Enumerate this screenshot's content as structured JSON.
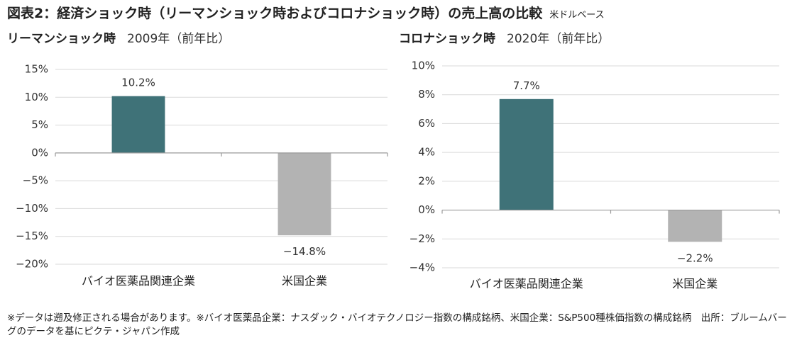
{
  "title": "図表2：経済ショック時（リーマンショック時およびコロナショック時）の売上高の比較",
  "unit": "米ドルベース",
  "note": "※データは遡及修正される場合があります。※バイオ医薬品企業：ナスダック・バイオテクノロジー指数の構成銘柄、米国企業：S&P500種株価指数の構成銘柄　出所：ブルームバーグのデータを基にピクテ・ジャパン作成",
  "colors": {
    "bio": "#3f7278",
    "us": "#b3b3b3"
  },
  "chart_data": [
    {
      "type": "bar",
      "title": "リーマンショック時",
      "subtitle": "2009年（前年比）",
      "categories": [
        "バイオ医薬品関連企業",
        "米国企業"
      ],
      "values": [
        10.2,
        -14.8
      ],
      "value_labels": [
        "10.2%",
        "−14.8%"
      ],
      "ylim": [
        -20,
        15
      ],
      "yticks": [
        15,
        10,
        5,
        0,
        -5,
        -10,
        -15,
        -20
      ],
      "ytick_labels": [
        "15%",
        "10%",
        "5%",
        "0%",
        "−5%",
        "−10%",
        "−15%",
        "−20%"
      ],
      "grid": true
    },
    {
      "type": "bar",
      "title": "コロナショック時",
      "subtitle": "2020年（前年比）",
      "categories": [
        "バイオ医薬品関連企業",
        "米国企業"
      ],
      "values": [
        7.7,
        -2.2
      ],
      "value_labels": [
        "7.7%",
        "−2.2%"
      ],
      "ylim": [
        -4,
        10
      ],
      "yticks": [
        10,
        8,
        6,
        4,
        2,
        0,
        -2,
        -4
      ],
      "ytick_labels": [
        "10%",
        "8%",
        "6%",
        "4%",
        "2%",
        "0%",
        "−2%",
        "−4%"
      ],
      "grid": true
    }
  ]
}
